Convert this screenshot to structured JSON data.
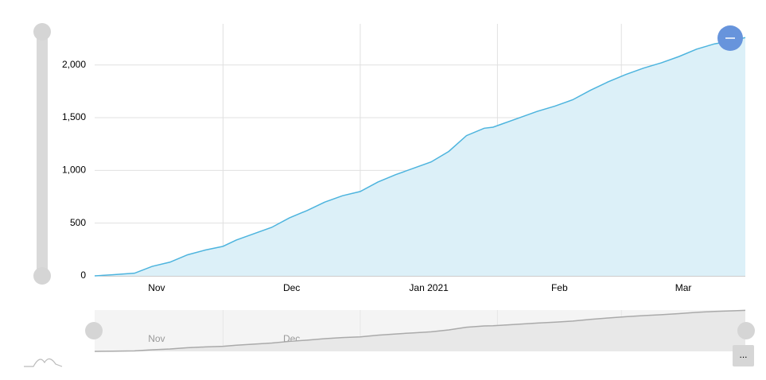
{
  "chart_data": {
    "type": "area",
    "x": [
      1,
      5,
      10,
      14,
      18,
      22,
      26,
      30,
      33,
      37,
      41,
      45,
      49,
      53,
      57,
      61,
      65,
      69,
      73,
      77,
      81,
      85,
      89,
      91,
      93,
      97,
      101,
      105,
      109,
      113,
      117,
      121,
      125,
      129,
      133,
      137,
      141,
      145,
      148
    ],
    "series": [
      {
        "color": "#4db4de",
        "values": [
          0,
          10,
          25,
          90,
          130,
          200,
          245,
          280,
          340,
          400,
          460,
          550,
          620,
          700,
          760,
          800,
          890,
          960,
          1020,
          1080,
          1180,
          1330,
          1400,
          1410,
          1440,
          1500,
          1560,
          1610,
          1670,
          1760,
          1840,
          1910,
          1970,
          2020,
          2080,
          2150,
          2200,
          2230,
          2260
        ]
      }
    ],
    "xlim": [
      1,
      148
    ],
    "xticks": [
      {
        "value": 0,
        "label": "Nov"
      },
      {
        "value": 30,
        "label": "Dec"
      },
      {
        "value": 61,
        "label": "Jan 2021"
      },
      {
        "value": 92,
        "label": "Feb"
      },
      {
        "value": 120,
        "label": "Mar"
      }
    ],
    "ylim": [
      0,
      2390
    ],
    "yticks": [
      0,
      500,
      {
        "value": 1000,
        "label": "1,000"
      },
      {
        "value": 1500,
        "label": "1,500"
      },
      {
        "value": 2000,
        "label": "2,000"
      }
    ],
    "grid": true
  },
  "ui": {
    "menu": "..."
  }
}
